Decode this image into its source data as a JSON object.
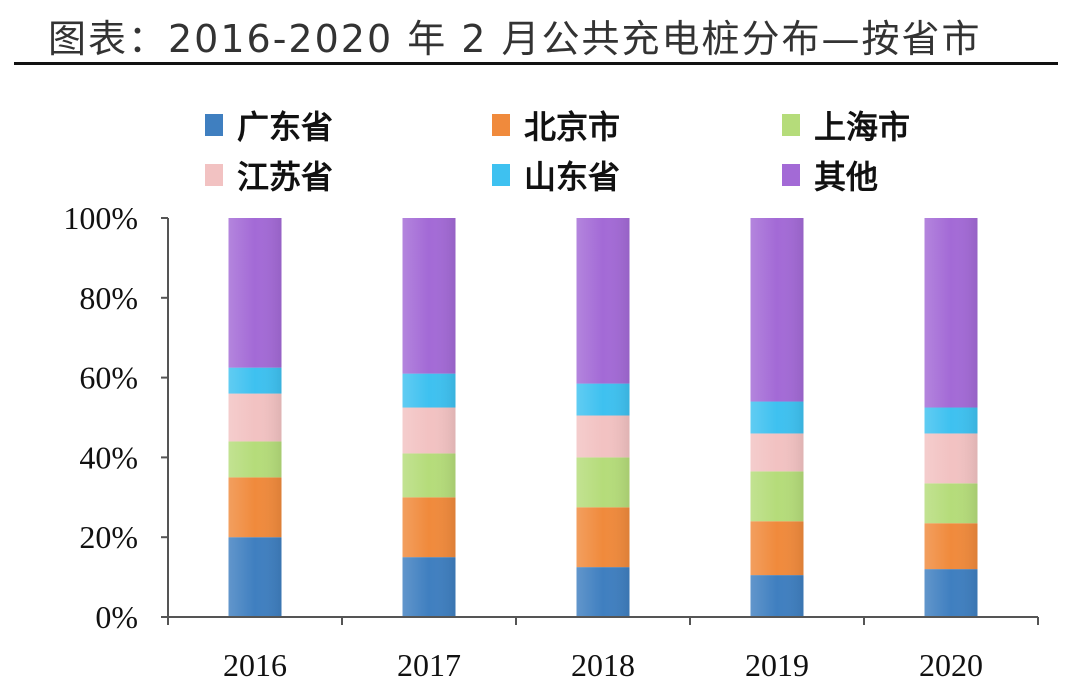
{
  "title": "图表：2016-2020 年 2 月公共充电桩分布—按省市",
  "chart_data": {
    "type": "bar",
    "stacked": true,
    "categories": [
      "2016",
      "2017",
      "2018",
      "2019",
      "2020"
    ],
    "series": [
      {
        "name": "广东省",
        "color": "#3f7fc0",
        "values": [
          20,
          15,
          12.5,
          10.5,
          12
        ]
      },
      {
        "name": "北京市",
        "color": "#f08a3c",
        "values": [
          15,
          15,
          15,
          13.5,
          11.5
        ]
      },
      {
        "name": "上海市",
        "color": "#b5dc7a",
        "values": [
          9,
          11,
          12.5,
          12.5,
          10
        ]
      },
      {
        "name": "江苏省",
        "color": "#f2c2c2",
        "values": [
          12,
          11.5,
          10.5,
          9.5,
          12.5
        ]
      },
      {
        "name": "山东省",
        "color": "#3ec1f0",
        "values": [
          6.5,
          8.5,
          8,
          8,
          6.5
        ]
      },
      {
        "name": "其他",
        "color": "#a36ad6",
        "values": [
          37.5,
          39,
          41.5,
          46,
          47.5
        ]
      }
    ],
    "yticks": [
      "0%",
      "20%",
      "40%",
      "60%",
      "80%",
      "100%"
    ],
    "ylim": [
      0,
      100
    ],
    "legend_position": "top",
    "grid": false
  }
}
